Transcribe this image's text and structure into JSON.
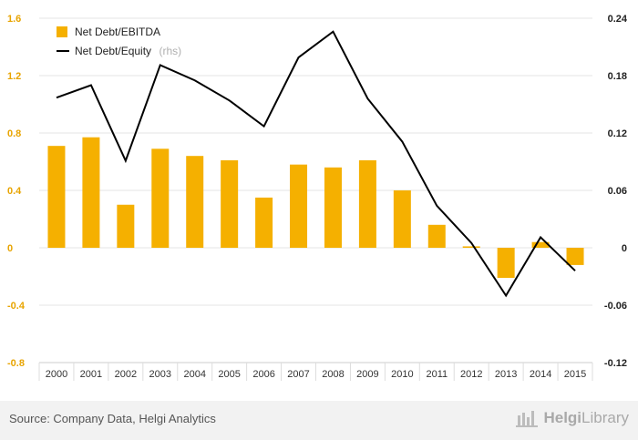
{
  "chart_data": {
    "type": "bar",
    "categories": [
      "2000",
      "2001",
      "2002",
      "2003",
      "2004",
      "2005",
      "2006",
      "2007",
      "2008",
      "2009",
      "2010",
      "2011",
      "2012",
      "2013",
      "2014",
      "2015"
    ],
    "series": [
      {
        "name": "Net Debt/EBITDA",
        "type": "bar",
        "axis": "left",
        "color": "#f5b000",
        "values": [
          0.71,
          0.77,
          0.3,
          0.69,
          0.64,
          0.61,
          0.35,
          0.58,
          0.56,
          0.61,
          0.4,
          0.16,
          0.01,
          -0.21,
          0.04,
          -0.12
        ]
      },
      {
        "name": "Net Debt/Equity",
        "name_suffix": "(rhs)",
        "type": "line",
        "axis": "right",
        "color": "#000000",
        "values": [
          0.157,
          0.17,
          0.091,
          0.191,
          0.175,
          0.154,
          0.127,
          0.199,
          0.226,
          0.156,
          0.111,
          0.044,
          0.005,
          -0.05,
          0.011,
          -0.024
        ]
      }
    ],
    "y_left": {
      "min": -0.8,
      "max": 1.6,
      "ticks": [
        "-0.8",
        "-0.4",
        "0",
        "0.4",
        "0.8",
        "1.2",
        "1.6"
      ]
    },
    "y_right": {
      "min": -0.12,
      "max": 0.24,
      "ticks": [
        "-0.12",
        "-0.06",
        "0",
        "0.06",
        "0.12",
        "0.18",
        "0.24"
      ]
    },
    "grid": true,
    "legend_position": "top-left"
  },
  "footer": {
    "source": "Source: Company Data, Helgi Analytics",
    "brand_part1": "Helgi",
    "brand_part2": "Library"
  },
  "colors": {
    "bar": "#f5b000",
    "line": "#000000",
    "left_axis_text": "#e8a400"
  }
}
